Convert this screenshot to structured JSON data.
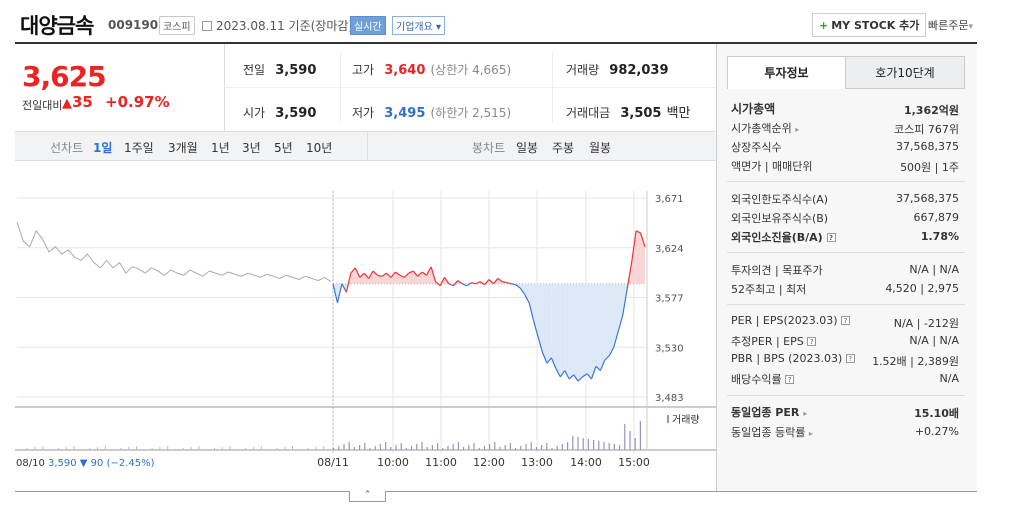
{
  "header": {
    "name": "대양금속",
    "code": "009190",
    "market": "코스피",
    "date": "2023.08.11",
    "basis": "기준(장마감)",
    "realtime": "실시간",
    "company_overview": "기업개요",
    "mystock": "MY STOCK 추가",
    "quick_order": "빠른주문"
  },
  "quote": {
    "price": "3,625",
    "change_label": "전일대비",
    "change": "35",
    "change_pct": "+0.97%",
    "prev_label": "전일",
    "prev": "3,590",
    "open_label": "시가",
    "open": "3,590",
    "high_label": "고가",
    "high": "3,640",
    "upper_limit": "(상한가 4,665)",
    "low_label": "저가",
    "low": "3,495",
    "lower_limit": "(하한가 2,515)",
    "volume_label": "거래량",
    "volume": "982,039",
    "amount_label": "거래대금",
    "amount": "3,505",
    "amount_unit": "백만"
  },
  "toolbar": {
    "line_label": "선차트",
    "periods": [
      "1일",
      "1주일",
      "3개월",
      "1년",
      "3년",
      "5년",
      "10년"
    ],
    "candle_label": "봉차트",
    "candle_periods": [
      "일봉",
      "주봉",
      "월봉"
    ]
  },
  "chart_data": {
    "type": "line",
    "y_ticks": [
      "3,671",
      "3,624",
      "3,577",
      "3,530",
      "3,483"
    ],
    "ylim": [
      3483,
      3671
    ],
    "x_ticks": [
      "08/10",
      "08/11",
      "10:00",
      "11:00",
      "12:00",
      "13:00",
      "14:00",
      "15:00"
    ],
    "baseline": 3590,
    "prev_day_caption": "08/10",
    "prev_day_close": "3,590",
    "prev_day_change": "▼ 90",
    "prev_day_pct": "(−2.45%)",
    "volume_legend": "거래량",
    "prev_day_series": [
      3648,
      3630,
      3625,
      3640,
      3632,
      3620,
      3625,
      3618,
      3622,
      3615,
      3612,
      3618,
      3610,
      3605,
      3612,
      3605,
      3610,
      3600,
      3606,
      3604,
      3600,
      3605,
      3602,
      3598,
      3603,
      3600,
      3598,
      3603,
      3600,
      3597,
      3602,
      3600,
      3598,
      3601,
      3599,
      3597,
      3600,
      3598,
      3596,
      3599,
      3597,
      3595,
      3598,
      3596,
      3594,
      3597,
      3595,
      3593,
      3596,
      3592
    ],
    "today_series": [
      3590,
      3572,
      3590,
      3582,
      3600,
      3605,
      3596,
      3600,
      3595,
      3602,
      3598,
      3597,
      3600,
      3596,
      3601,
      3598,
      3596,
      3600,
      3602,
      3597,
      3601,
      3598,
      3606,
      3592,
      3588,
      3596,
      3590,
      3588,
      3593,
      3590,
      3588,
      3591,
      3590,
      3592,
      3589,
      3594,
      3590,
      3595,
      3592,
      3591,
      3590,
      3589,
      3586,
      3580,
      3572,
      3555,
      3540,
      3525,
      3515,
      3520,
      3510,
      3502,
      3508,
      3500,
      3504,
      3498,
      3502,
      3505,
      3500,
      3512,
      3508,
      3518,
      3522,
      3530,
      3545,
      3560,
      3585,
      3610,
      3640,
      3638,
      3625
    ]
  },
  "tabs": {
    "invest": "투자정보",
    "quote10": "호가10단계"
  },
  "invest": {
    "market_cap_label": "시가총액",
    "market_cap": "1,362억원",
    "market_cap_rank_label": "시가총액순위",
    "market_cap_rank": "코스피 767위",
    "shares_label": "상장주식수",
    "shares": "37,568,375",
    "par_label": "액면가 | 매매단위",
    "par": "500원 | 1주",
    "foreign_limit_label": "외국인한도주식수(A)",
    "foreign_limit": "37,568,375",
    "foreign_hold_label": "외국인보유주식수(B)",
    "foreign_hold": "667,879",
    "foreign_ratio_label": "외국인소진율(B/A)",
    "foreign_ratio": "1.78%",
    "opinion_label": "투자의견 | 목표주가",
    "opinion": "N/A | N/A",
    "w52_label": "52주최고 | 최저",
    "w52": "4,520 | 2,975",
    "per_label": "PER | EPS(2023.03)",
    "per": "N/A | -212원",
    "est_per_label": "추정PER | EPS",
    "est_per": "N/A | N/A",
    "pbr_label": "PBR | BPS (2023.03)",
    "pbr": "1.52배 | 2,389원",
    "div_label": "배당수익률",
    "div": "N/A",
    "ind_per_label": "동일업종 PER",
    "ind_per": "15.10배",
    "ind_rate_label": "동일업종 등락률",
    "ind_rate": "+0.27%"
  }
}
